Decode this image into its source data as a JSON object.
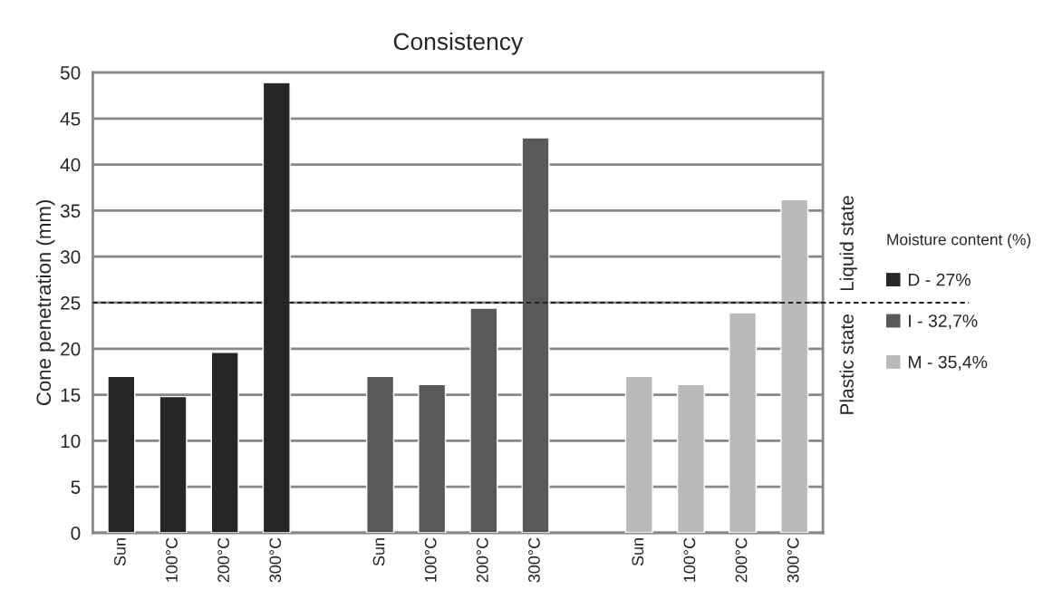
{
  "chart_data": {
    "type": "bar",
    "title": "Consistency",
    "ylabel": "Cone penetration (mm)",
    "legend_title": "Moisture content (%)",
    "categories": [
      "Sun",
      "100°C",
      "200°C",
      "300°C",
      null,
      "Sun",
      "100°C",
      "200°C",
      "300°C",
      null,
      "Sun",
      "100°C",
      "200°C",
      "300°C"
    ],
    "series": [
      {
        "name": "D - 27%",
        "color": "#262626",
        "values": [
          17,
          14.8,
          19.6,
          48.9,
          null,
          null,
          null,
          null,
          null,
          null,
          null,
          null,
          null,
          null
        ]
      },
      {
        "name": "I - 32,7%",
        "color": "#595959",
        "values": [
          null,
          null,
          null,
          null,
          null,
          17,
          16.1,
          24.4,
          42.9,
          null,
          null,
          null,
          null,
          null
        ]
      },
      {
        "name": "M - 35,4%",
        "color": "#bababa",
        "values": [
          null,
          null,
          null,
          null,
          null,
          null,
          null,
          null,
          null,
          null,
          17,
          16.1,
          23.9,
          36.2
        ]
      }
    ],
    "ylim": [
      0,
      50
    ],
    "yticks": [
      0,
      5,
      10,
      15,
      20,
      25,
      30,
      35,
      40,
      45,
      50
    ],
    "ref_lines": [
      {
        "axis": "y",
        "value": 25,
        "label": null,
        "color": "#222222",
        "line_style": "dashed"
      }
    ],
    "annotations": [
      "Liquid state",
      "Plastic state"
    ],
    "grid": "y",
    "legend": "right"
  }
}
